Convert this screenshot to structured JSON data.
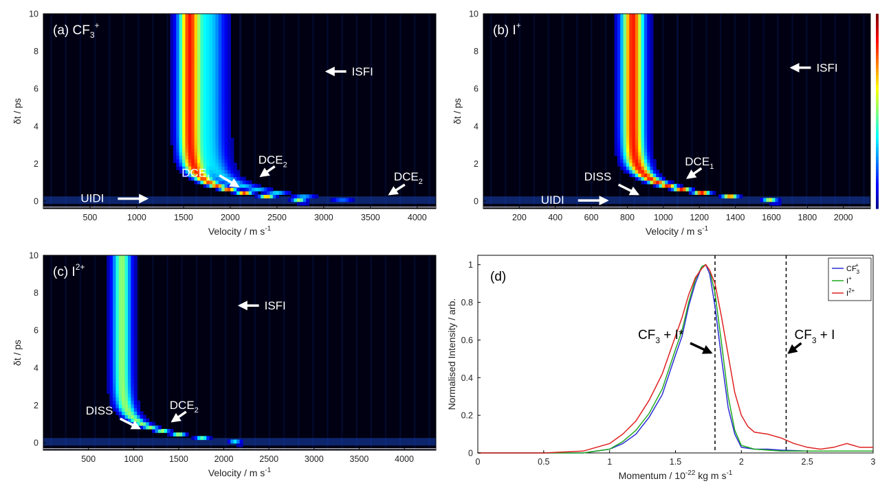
{
  "chart_data": [
    {
      "type": "heatmap",
      "panel_label": "(a)",
      "ion": {
        "base": "CF",
        "sub": "3",
        "sup": "+"
      },
      "xlabel": "Velocity / m s",
      "xlabel_exp": "-1",
      "ylabel": "δt / ps",
      "xlim": [
        0,
        4200
      ],
      "ylim": [
        -0.4,
        10
      ],
      "xticks": [
        500,
        1000,
        1500,
        2000,
        2500,
        3000,
        3500,
        4000
      ],
      "yticks": [
        0,
        2,
        4,
        6,
        8,
        10
      ],
      "ridges": [
        {
          "v_at_10ps": 1560,
          "v_at_0ps": 2900,
          "width": 110,
          "peak": 0.85
        },
        {
          "v_at_10ps": 1780,
          "v_at_0ps": 3400,
          "width": 160,
          "peak": 0.35
        }
      ],
      "annotations": [
        {
          "label": "ISFI",
          "sub": "",
          "x": 3300,
          "y": 6.7
        },
        {
          "label": "DCE",
          "sub": "1",
          "x": 1480,
          "y": 1.3
        },
        {
          "label": "DCE",
          "sub": "2",
          "x": 2300,
          "y": 2.0
        },
        {
          "label": "DCE",
          "sub": "2",
          "x": 3750,
          "y": 1.1
        },
        {
          "label": "UIDI",
          "sub": "",
          "x": 400,
          "y": -0.05
        }
      ]
    },
    {
      "type": "heatmap",
      "panel_label": "(b)",
      "ion": {
        "base": "I",
        "sub": "",
        "sup": "+"
      },
      "xlabel": "Velocity / m s",
      "xlabel_exp": "-1",
      "ylabel": "δt / ps",
      "xlim": [
        0,
        2150
      ],
      "ylim": [
        -0.4,
        10
      ],
      "xticks": [
        200,
        400,
        600,
        800,
        1000,
        1200,
        1400,
        1600,
        1800,
        2000
      ],
      "yticks": [
        0,
        2,
        4,
        6,
        8,
        10
      ],
      "ridges": [
        {
          "v_at_10ps": 830,
          "v_at_0ps": 1700,
          "width": 60,
          "peak": 0.9
        }
      ],
      "annotations": [
        {
          "label": "ISFI",
          "sub": "",
          "x": 1850,
          "y": 6.9
        },
        {
          "label": "DCE",
          "sub": "1",
          "x": 1120,
          "y": 1.9
        },
        {
          "label": "DISS",
          "sub": "",
          "x": 560,
          "y": 1.1
        },
        {
          "label": "UIDI",
          "sub": "",
          "x": 320,
          "y": -0.15
        }
      ]
    },
    {
      "type": "heatmap",
      "panel_label": "(c)",
      "ion": {
        "base": "I",
        "sub": "",
        "sup": "2+"
      },
      "xlabel": "Velocity / m s",
      "xlabel_exp": "-1",
      "ylabel": "δt / ps",
      "xlim": [
        0,
        4350
      ],
      "ylim": [
        -0.4,
        10
      ],
      "xticks": [
        500,
        1000,
        1500,
        2000,
        2500,
        3000,
        3500,
        4000
      ],
      "yticks": [
        0,
        2,
        4,
        6,
        8,
        10
      ],
      "ridges": [
        {
          "v_at_10ps": 870,
          "v_at_0ps": 2300,
          "width": 100,
          "peak": 0.55
        }
      ],
      "annotations": [
        {
          "label": "ISFI",
          "sub": "",
          "x": 2450,
          "y": 7.1
        },
        {
          "label": "DCE",
          "sub": "2",
          "x": 1400,
          "y": 1.8
        },
        {
          "label": "DISS",
          "sub": "",
          "x": 470,
          "y": 1.5
        }
      ]
    },
    {
      "type": "line",
      "panel_label": "(d)",
      "xlabel": "Momentum / 10",
      "xlabel_exp": "-22",
      "xlabel_tail": " kg m s",
      "xlabel_tail_exp": "-1",
      "ylabel": "Normalised Intensity / arb.",
      "xlim": [
        0,
        3
      ],
      "ylim": [
        0,
        1.05
      ],
      "xticks": [
        0,
        0.5,
        1,
        1.5,
        2,
        2.5,
        3
      ],
      "yticks": [
        0,
        0.2,
        0.4,
        0.6,
        0.8,
        1
      ],
      "vlines": [
        1.8,
        2.34
      ],
      "vline_labels": [
        {
          "text": "CF",
          "sub": "3",
          "tail": " + I*",
          "x": 1.8
        },
        {
          "text": "CF",
          "sub": "3",
          "tail": " + I",
          "x": 2.34
        }
      ],
      "legend_position": "top-right",
      "series": [
        {
          "name": "CF",
          "sub": "3",
          "sup": "+",
          "color": "#2b2bd6",
          "x": [
            0,
            0.5,
            0.8,
            1.0,
            1.1,
            1.2,
            1.3,
            1.4,
            1.5,
            1.55,
            1.6,
            1.65,
            1.7,
            1.73,
            1.76,
            1.8,
            1.85,
            1.9,
            1.95,
            2.0,
            2.1,
            2.2,
            2.3,
            2.5,
            2.8,
            3.0
          ],
          "y": [
            0,
            0,
            0,
            0.02,
            0.05,
            0.1,
            0.19,
            0.31,
            0.52,
            0.62,
            0.78,
            0.9,
            0.99,
            1.0,
            0.95,
            0.78,
            0.5,
            0.24,
            0.1,
            0.03,
            0.02,
            0.02,
            0.015,
            0.01,
            0.01,
            0.01
          ]
        },
        {
          "name": "I",
          "sub": "",
          "sup": "+",
          "color": "#1faa1f",
          "x": [
            0,
            0.5,
            0.8,
            1.0,
            1.1,
            1.2,
            1.3,
            1.4,
            1.5,
            1.55,
            1.6,
            1.65,
            1.7,
            1.73,
            1.76,
            1.8,
            1.85,
            1.9,
            1.95,
            2.0,
            2.1,
            2.2,
            2.3,
            2.5,
            2.8,
            3.0
          ],
          "y": [
            0,
            0,
            0,
            0.02,
            0.06,
            0.12,
            0.21,
            0.34,
            0.55,
            0.65,
            0.8,
            0.92,
            0.99,
            1.0,
            0.97,
            0.85,
            0.58,
            0.3,
            0.12,
            0.04,
            0.02,
            0.015,
            0.01,
            0.01,
            0.01,
            0.01
          ]
        },
        {
          "name": "I",
          "sub": "",
          "sup": "2+",
          "color": "#e02020",
          "x": [
            0,
            0.5,
            0.8,
            1.0,
            1.1,
            1.2,
            1.3,
            1.4,
            1.5,
            1.55,
            1.6,
            1.65,
            1.7,
            1.73,
            1.76,
            1.8,
            1.85,
            1.9,
            1.95,
            2.0,
            2.05,
            2.1,
            2.2,
            2.3,
            2.4,
            2.5,
            2.6,
            2.7,
            2.8,
            2.85,
            2.9,
            3.0
          ],
          "y": [
            0,
            0,
            0.01,
            0.05,
            0.1,
            0.17,
            0.28,
            0.42,
            0.62,
            0.72,
            0.84,
            0.93,
            0.98,
            1.0,
            0.97,
            0.9,
            0.72,
            0.52,
            0.32,
            0.2,
            0.14,
            0.11,
            0.1,
            0.08,
            0.05,
            0.03,
            0.02,
            0.03,
            0.05,
            0.04,
            0.03,
            0.03
          ]
        }
      ]
    }
  ]
}
